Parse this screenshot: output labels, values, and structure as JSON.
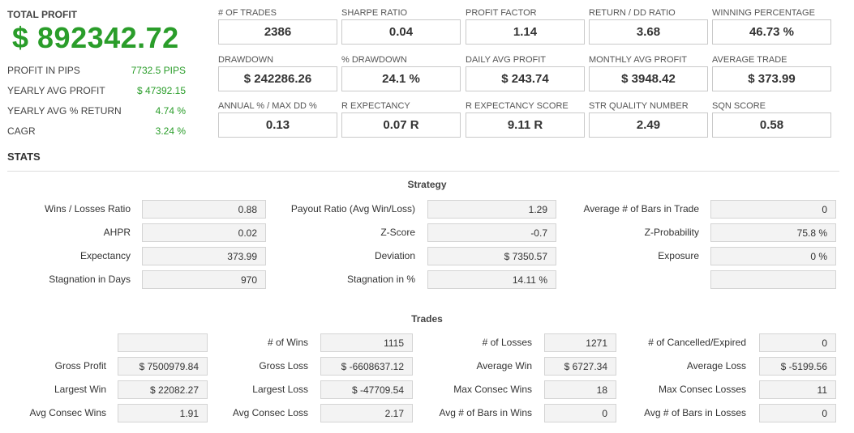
{
  "header": {
    "total_profit_label": "TOTAL PROFIT",
    "total_profit_value": "$ 892342.72",
    "left_stats": [
      {
        "label": "PROFIT IN PIPS",
        "value": "7732.5 PIPS"
      },
      {
        "label": "YEARLY AVG PROFIT",
        "value": "$ 47392.15"
      },
      {
        "label": "YEARLY AVG % RETURN",
        "value": "4.74 %"
      },
      {
        "label": "CAGR",
        "value": "3.24 %"
      }
    ]
  },
  "metrics": [
    {
      "label": "# OF TRADES",
      "value": "2386"
    },
    {
      "label": "SHARPE RATIO",
      "value": "0.04"
    },
    {
      "label": "PROFIT FACTOR",
      "value": "1.14"
    },
    {
      "label": "RETURN / DD RATIO",
      "value": "3.68"
    },
    {
      "label": "WINNING PERCENTAGE",
      "value": "46.73 %"
    },
    {
      "label": "DRAWDOWN",
      "value": "$ 242286.26"
    },
    {
      "label": "% DRAWDOWN",
      "value": "24.1 %"
    },
    {
      "label": "DAILY AVG PROFIT",
      "value": "$ 243.74"
    },
    {
      "label": "MONTHLY AVG PROFIT",
      "value": "$ 3948.42"
    },
    {
      "label": "AVERAGE TRADE",
      "value": "$ 373.99"
    },
    {
      "label": "ANNUAL % / MAX DD %",
      "value": "0.13"
    },
    {
      "label": "R EXPECTANCY",
      "value": "0.07 R"
    },
    {
      "label": "R EXPECTANCY SCORE",
      "value": "9.11 R"
    },
    {
      "label": "STR QUALITY NUMBER",
      "value": "2.49"
    },
    {
      "label": "SQN SCORE",
      "value": "0.58"
    }
  ],
  "stats": {
    "title": "STATS",
    "strategy": {
      "title": "Strategy",
      "rows": [
        {
          "l1": "Wins / Losses Ratio",
          "v1": "0.88",
          "l2": "Payout Ratio (Avg Win/Loss)",
          "v2": "1.29",
          "l3": "Average # of Bars in Trade",
          "v3": "0"
        },
        {
          "l1": "AHPR",
          "v1": "0.02",
          "l2": "Z-Score",
          "v2": "-0.7",
          "l3": "Z-Probability",
          "v3": "75.8 %"
        },
        {
          "l1": "Expectancy",
          "v1": "373.99",
          "l2": "Deviation",
          "v2": "$ 7350.57",
          "l3": "Exposure",
          "v3": "0 %"
        },
        {
          "l1": "Stagnation in Days",
          "v1": "970",
          "l2": "Stagnation in %",
          "v2": "14.11 %",
          "l3": "",
          "v3": ""
        }
      ]
    },
    "trades": {
      "title": "Trades",
      "rows": [
        {
          "l1": "",
          "v1": "",
          "l2": "# of Wins",
          "v2": "1115",
          "l3": "# of Losses",
          "v3": "1271",
          "l4": "# of Cancelled/Expired",
          "v4": "0"
        },
        {
          "l1": "Gross Profit",
          "v1": "$ 7500979.84",
          "l2": "Gross Loss",
          "v2": "$ -6608637.12",
          "l3": "Average Win",
          "v3": "$ 6727.34",
          "l4": "Average Loss",
          "v4": "$ -5199.56"
        },
        {
          "l1": "Largest Win",
          "v1": "$ 22082.27",
          "l2": "Largest Loss",
          "v2": "$ -47709.54",
          "l3": "Max Consec Wins",
          "v3": "18",
          "l4": "Max Consec Losses",
          "v4": "11"
        },
        {
          "l1": "Avg Consec Wins",
          "v1": "1.91",
          "l2": "Avg Consec Loss",
          "v2": "2.17",
          "l3": "Avg # of Bars in Wins",
          "v3": "0",
          "l4": "Avg # of Bars in Losses",
          "v4": "0"
        }
      ]
    }
  }
}
